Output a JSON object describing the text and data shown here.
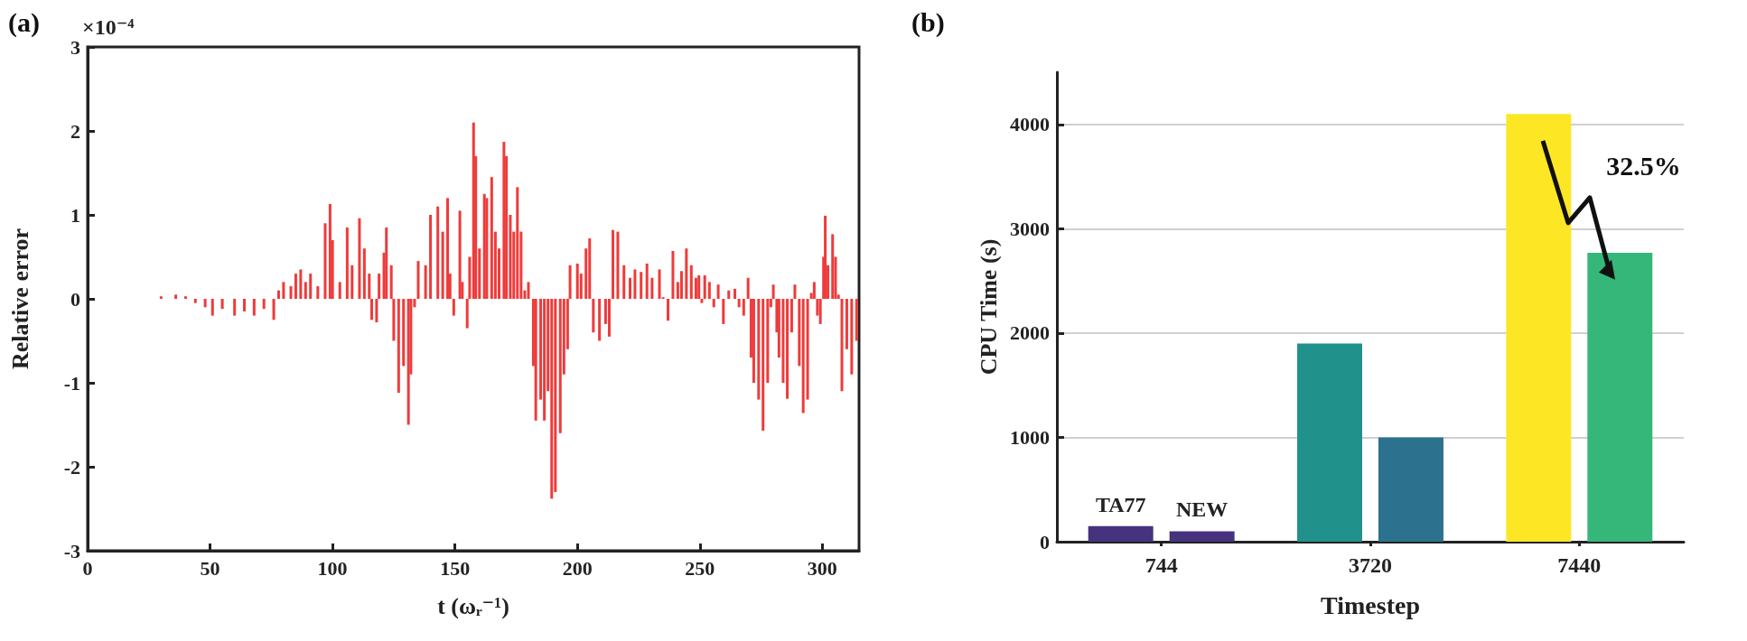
{
  "chart_data": [
    {
      "type": "bar",
      "title": "(a)",
      "xlabel": "t (ωᵣ⁻¹)",
      "ylabel": "Relative error",
      "annotations": [
        "×10⁻⁴"
      ],
      "color": "#ee3b3b",
      "x": [
        0,
        10,
        20,
        30,
        36,
        40,
        44,
        48,
        51,
        55,
        60,
        64,
        68,
        72,
        76,
        78,
        80,
        83,
        85,
        87,
        89,
        91,
        94,
        97,
        99,
        100,
        103,
        106,
        108,
        111,
        113,
        115,
        116,
        118,
        119,
        121,
        122,
        124,
        125,
        127,
        129,
        131,
        132,
        133.5,
        135,
        138,
        140,
        143,
        145,
        147,
        148,
        149.5,
        152,
        153,
        155,
        156,
        157.6,
        158.5,
        160,
        162,
        163,
        165,
        166.5,
        168,
        170,
        171,
        172.6,
        174,
        175.5,
        177,
        178.5,
        180,
        182,
        183,
        185,
        186.5,
        188,
        189.5,
        191,
        193,
        194.5,
        196,
        197,
        200,
        201.5,
        203.5,
        205,
        206.5,
        209,
        211.5,
        213,
        214.5,
        216.5,
        219,
        221.5,
        223.5,
        226,
        228.4,
        230.5,
        233.5,
        235,
        237,
        239,
        241,
        242.5,
        244.5,
        246.5,
        248.4,
        249.6,
        250.8,
        252,
        253.9,
        255.7,
        257.5,
        259.6,
        261.8,
        264.3,
        266,
        267.9,
        269.7,
        270.9,
        272,
        274,
        275.8,
        277.7,
        279,
        280,
        281.4,
        282.3,
        284,
        285.7,
        287.5,
        288.8,
        290.6,
        292.2,
        294,
        295.5,
        296.7,
        298,
        299.2,
        300.5,
        301.2,
        302.3,
        304.2,
        305.4,
        306.6,
        308,
        310,
        312,
        314
      ],
      "values": [
        0,
        0,
        0,
        0.03,
        0.05,
        0.03,
        -0.05,
        -0.1,
        -0.2,
        -0.12,
        -0.2,
        -0.15,
        -0.2,
        -0.12,
        -0.25,
        0.1,
        0.2,
        0.15,
        0.3,
        0.35,
        0.2,
        0.3,
        0.15,
        0.9,
        1.13,
        0.7,
        0.2,
        0.85,
        0.4,
        0.96,
        0.6,
        0.3,
        -0.25,
        -0.28,
        0.3,
        0.55,
        0.85,
        0.4,
        -0.5,
        -1.12,
        -0.8,
        -1.5,
        -0.9,
        -0.1,
        0.45,
        0.4,
        1.0,
        1.1,
        0.8,
        1.2,
        0.3,
        -0.2,
        1.05,
        0.2,
        -0.35,
        0.5,
        2.1,
        1.7,
        0.6,
        1.25,
        1.2,
        1.45,
        0.8,
        0.6,
        1.87,
        1.7,
        1.0,
        0.8,
        1.33,
        0.8,
        0.1,
        0.2,
        -0.8,
        -1.45,
        -1.2,
        -1.45,
        -1.1,
        -2.38,
        -2.3,
        -1.6,
        -0.9,
        -0.6,
        0.4,
        0.42,
        0.3,
        0.6,
        0.72,
        -0.4,
        -0.5,
        -0.3,
        -0.45,
        0.82,
        0.8,
        0.4,
        0.25,
        0.35,
        0.32,
        0.42,
        0.25,
        0.35,
        0.02,
        -0.26,
        0.57,
        0.2,
        0.33,
        0.6,
        0.4,
        0.25,
        0.28,
        -0.05,
        0.28,
        0.2,
        -0.1,
        0.17,
        -0.3,
        0.1,
        0.12,
        -0.1,
        -0.2,
        0.25,
        -0.7,
        -1.0,
        -1.2,
        -1.57,
        -1.0,
        -0.1,
        0.17,
        -0.4,
        -0.7,
        -1.0,
        -1.19,
        -0.4,
        0.17,
        -0.8,
        -1.36,
        -1.2,
        0.07,
        0.2,
        -0.2,
        -0.3,
        0.5,
        0.99,
        0.4,
        0.77,
        0.5,
        0.05,
        -1.1,
        -0.6,
        -0.9,
        -0.5
      ],
      "xlim": [
        0,
        315
      ],
      "xticks": [
        0,
        50,
        100,
        150,
        200,
        250,
        300
      ],
      "ylim": [
        -3,
        3
      ],
      "yticks": [
        -3,
        -2,
        -1,
        0,
        1,
        2,
        3
      ]
    },
    {
      "type": "bar",
      "title": "(b)",
      "xlabel": "Timestep",
      "ylabel": "CPU Time (s)",
      "categories": [
        "744",
        "3720",
        "7440"
      ],
      "series": [
        {
          "name": "TA77",
          "colors": [
            "#46327e",
            "#21918c",
            "#fde725"
          ],
          "values": [
            150,
            1900,
            4100
          ]
        },
        {
          "name": "NEW",
          "colors": [
            "#46327e",
            "#2c728e",
            "#35b779"
          ],
          "values": [
            100,
            1000,
            2770
          ]
        }
      ],
      "ylim": [
        0,
        4500
      ],
      "yticks": [
        0,
        1000,
        2000,
        3000,
        4000
      ],
      "grid": "y",
      "annotations": [
        "32.5%"
      ]
    }
  ]
}
